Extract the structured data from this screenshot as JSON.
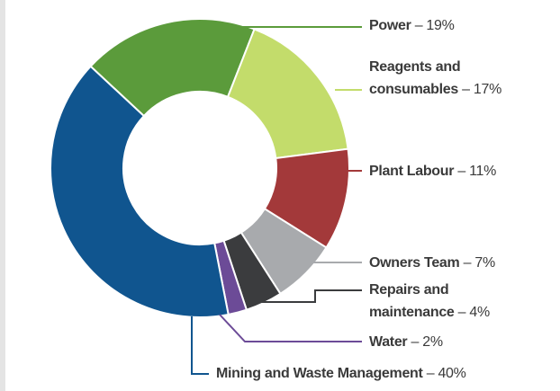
{
  "chart_data": {
    "type": "donut",
    "categories": [
      "Power",
      "Reagents and consumables",
      "Plant Labour",
      "Owners Team",
      "Repairs and maintenance",
      "Water",
      "Mining and Waste Management"
    ],
    "values": [
      19,
      17,
      11,
      7,
      4,
      2,
      40
    ],
    "value_labels": [
      "– 19%",
      "– 17%",
      "– 11%",
      "– 7%",
      "– 4%",
      "– 2%",
      "– 40%"
    ],
    "colors": [
      "#5b9b3b",
      "#c3dc6b",
      "#a3393a",
      "#a8aaad",
      "#3b3c3e",
      "#6c4b97",
      "#10558f"
    ]
  }
}
